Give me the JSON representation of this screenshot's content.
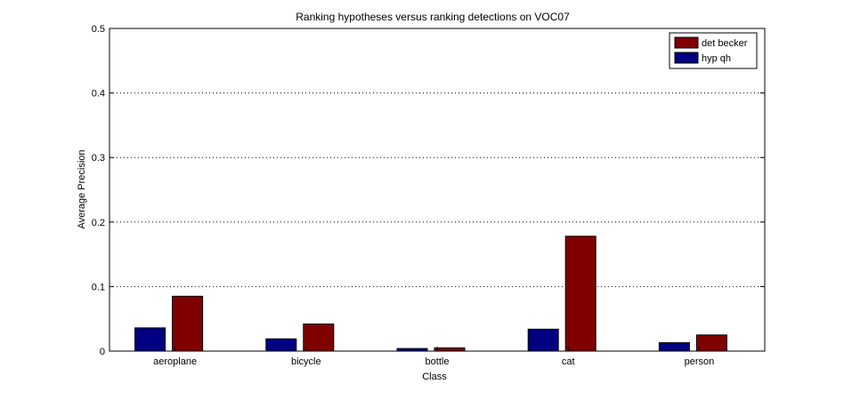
{
  "chart_data": {
    "type": "bar",
    "title": "Ranking hypotheses versus ranking detections on VOC07",
    "xlabel": "Class",
    "ylabel": "Average Precision",
    "categories": [
      "aeroplane",
      "bicycle",
      "bottle",
      "cat",
      "person"
    ],
    "ylim": [
      0,
      0.5
    ],
    "yticks": [
      "0",
      "0.1",
      "0.2",
      "0.3",
      "0.4",
      "0.5"
    ],
    "grid": "y-dotted",
    "legend_position": "top-right",
    "series": [
      {
        "name": "hyp qh",
        "color": "#000080",
        "values": [
          0.036,
          0.019,
          0.004,
          0.034,
          0.013
        ]
      },
      {
        "name": "det becker",
        "color": "#800000",
        "values": [
          0.085,
          0.042,
          0.005,
          0.178,
          0.025
        ]
      }
    ],
    "legend_order": [
      "det becker",
      "hyp qh"
    ]
  }
}
